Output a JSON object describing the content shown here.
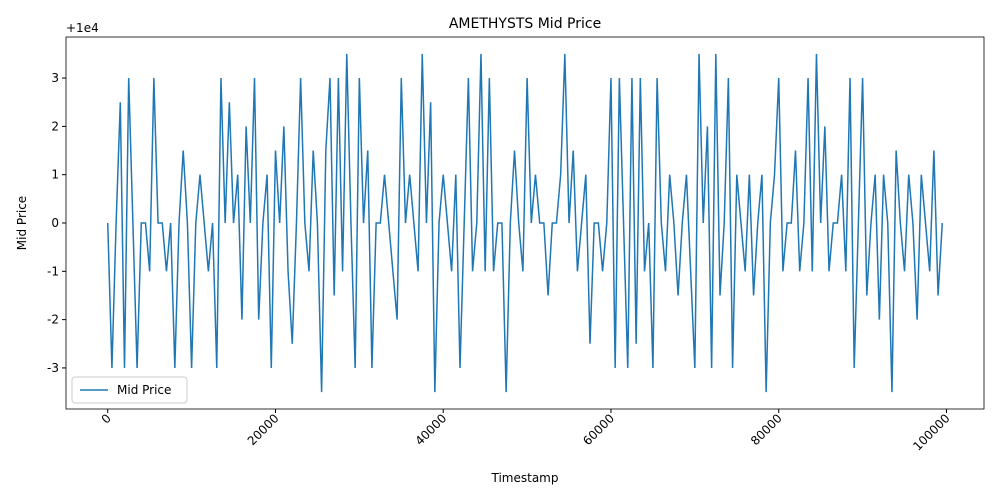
{
  "chart_data": {
    "type": "line",
    "title": "AMETHYSTS Mid Price",
    "x_label": "Timestamp",
    "y_label": "Mid Price",
    "y_offset_text": "+1e4",
    "x": [
      0,
      500,
      1000,
      1500,
      2000,
      2500,
      3000,
      3500,
      4000,
      4500,
      5000,
      5500,
      6000,
      6500,
      7000,
      7500,
      8000,
      8500,
      9000,
      9500,
      10000,
      10500,
      11000,
      11500,
      12000,
      12500,
      13000,
      13500,
      14000,
      14500,
      15000,
      15500,
      16000,
      16500,
      17000,
      17500,
      18000,
      18500,
      19000,
      19500,
      20000,
      20500,
      21000,
      21500,
      22000,
      22500,
      23000,
      23500,
      24000,
      24500,
      25000,
      25500,
      26000,
      26500,
      27000,
      27500,
      28000,
      28500,
      29000,
      29500,
      30000,
      30500,
      31000,
      31500,
      32000,
      32500,
      33000,
      33500,
      34000,
      34500,
      35000,
      35500,
      36000,
      36500,
      37000,
      37500,
      38000,
      38500,
      39000,
      39500,
      40000,
      40500,
      41000,
      41500,
      42000,
      42500,
      43000,
      43500,
      44000,
      44500,
      45000,
      45500,
      46000,
      46500,
      47000,
      47500,
      48000,
      48500,
      49000,
      49500,
      50000,
      50500,
      51000,
      51500,
      52000,
      52500,
      53000,
      53500,
      54000,
      54500,
      55000,
      55500,
      56000,
      56500,
      57000,
      57500,
      58000,
      58500,
      59000,
      59500,
      60000,
      60500,
      61000,
      61500,
      62000,
      62500,
      63000,
      63500,
      64000,
      64500,
      65000,
      65500,
      66000,
      66500,
      67000,
      67500,
      68000,
      68500,
      69000,
      69500,
      70000,
      70500,
      71000,
      71500,
      72000,
      72500,
      73000,
      73500,
      74000,
      74500,
      75000,
      75500,
      76000,
      76500,
      77000,
      77500,
      78000,
      78500,
      79000,
      79500,
      80000,
      80500,
      81000,
      81500,
      82000,
      82500,
      83000,
      83500,
      84000,
      84500,
      85000,
      85500,
      86000,
      86500,
      87000,
      87500,
      88000,
      88500,
      89000,
      89500,
      90000,
      90500,
      91000,
      91500,
      92000,
      92500,
      93000,
      93500,
      94000,
      94500,
      95000,
      95500,
      96000,
      96500,
      97000,
      97500,
      98000,
      98500,
      99000,
      99500
    ],
    "series": [
      {
        "name": "Mid Price",
        "color": "#1f77b4",
        "values": [
          0,
          -3,
          0,
          2.5,
          -3,
          3,
          0,
          -3,
          0,
          0,
          -1,
          3,
          0,
          0,
          -1,
          0,
          -3,
          0,
          1.5,
          0,
          -3,
          0,
          1,
          0,
          -1,
          0,
          -3,
          3,
          0,
          2.5,
          0,
          1,
          -2,
          2,
          0,
          3,
          -2,
          0,
          1,
          -3,
          1.5,
          0,
          2,
          -1,
          -2.5,
          0,
          3,
          0,
          -1,
          1.5,
          0,
          -3.5,
          1.5,
          3,
          -1.5,
          3,
          -1,
          3.5,
          0,
          -3,
          3,
          0,
          1.5,
          -3,
          0,
          0,
          1,
          0,
          -1,
          -2,
          3,
          0,
          1,
          0,
          -1,
          3.5,
          0,
          2.5,
          -3.5,
          0,
          1,
          0,
          -1,
          1,
          -3,
          0,
          3,
          -1,
          0,
          3.5,
          -1,
          3,
          -1,
          0,
          0,
          -3.5,
          0,
          1.5,
          0,
          -1,
          3,
          0,
          1,
          0,
          0,
          -1.5,
          0,
          0,
          1,
          3.5,
          0,
          1.5,
          -1,
          0,
          1,
          -2.5,
          0,
          0,
          -1,
          0,
          3,
          -3,
          3,
          0,
          -3,
          3,
          -2.5,
          3,
          -1,
          0,
          -3,
          3,
          0,
          -1,
          1,
          0,
          -1.5,
          0,
          1,
          -1,
          -3,
          3.5,
          0,
          2,
          -3,
          3.5,
          -1.5,
          0,
          3,
          -3,
          1,
          0,
          -1,
          1,
          -1.5,
          0,
          1,
          -3.5,
          0,
          1,
          3,
          -1,
          0,
          0,
          1.5,
          -1,
          0,
          3,
          -1,
          3.5,
          0,
          2,
          -1,
          0,
          0,
          1,
          -1,
          3,
          -3,
          0,
          3,
          -1.5,
          0,
          1,
          -2,
          1,
          0,
          -3.5,
          1.5,
          0,
          -1,
          1,
          0,
          -2,
          1,
          0,
          -1,
          1.5,
          -1.5,
          0
        ]
      }
    ],
    "xlim": [
      -4975,
      104475
    ],
    "ylim": [
      -3.85,
      3.85
    ],
    "xticks": [
      0,
      20000,
      40000,
      60000,
      80000,
      100000
    ],
    "yticks": [
      -3,
      -2,
      -1,
      0,
      1,
      2,
      3
    ],
    "legend": "lower left"
  }
}
